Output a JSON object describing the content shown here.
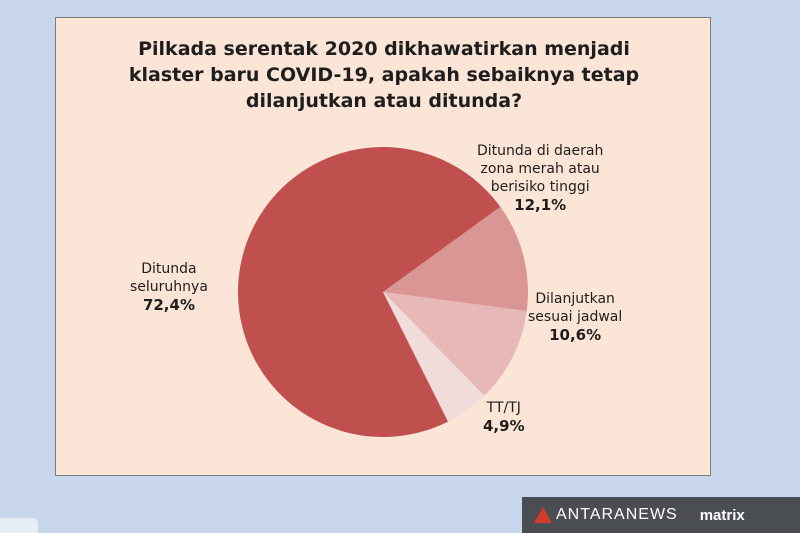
{
  "title_lines": [
    "Pilkada serentak 2020 dikhawatirkan menjadi",
    "klaster baru COVID-19, apakah sebaiknya tetap",
    "dilanjutkan atau ditunda?"
  ],
  "chart_data": {
    "type": "pie",
    "title": "Pilkada serentak 2020 dikhawatirkan menjadi klaster baru COVID-19, apakah sebaiknya tetap dilanjutkan atau ditunda?",
    "slices": [
      {
        "label_lines": [
          "Ditunda di daerah",
          "zona merah atau",
          "berisiko tinggi"
        ],
        "value": 12.1,
        "value_label": "12,1%",
        "color": "#d99694"
      },
      {
        "label_lines": [
          "Dilanjutkan",
          "sesuai jadwal"
        ],
        "value": 10.6,
        "value_label": "10,6%",
        "color": "#e6b9b8"
      },
      {
        "label_lines": [
          "TT/TJ"
        ],
        "value": 4.9,
        "value_label": "4,9%",
        "color": "#f2dcdb"
      },
      {
        "label_lines": [
          "Ditunda",
          "seluruhnya"
        ],
        "value": 72.4,
        "value_label": "72,4%",
        "color": "#c0504d"
      }
    ]
  },
  "watermark": {
    "brand_left": "ANTARANEWS",
    "brand_right": "matrix"
  }
}
